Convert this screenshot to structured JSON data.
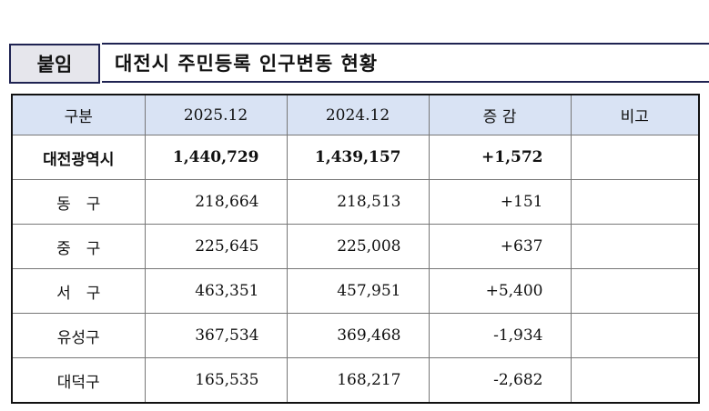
{
  "tag": "붙임",
  "title": "대전시 주민등록 인구변동 현황",
  "headers": [
    "구분",
    "2025.12",
    "2024.12",
    "증 감",
    "비고"
  ],
  "rows": [
    {
      "name": "대전광역시",
      "y2025": "1,440,729",
      "y2024": "1,439,157",
      "change": "+1,572",
      "note": ""
    },
    {
      "name": "동　구",
      "y2025": "218,664",
      "y2024": "218,513",
      "change": "+151",
      "note": ""
    },
    {
      "name": "중　구",
      "y2025": "225,645",
      "y2024": "225,008",
      "change": "+637",
      "note": ""
    },
    {
      "name": "서　구",
      "y2025": "463,351",
      "y2024": "457,951",
      "change": "+5,400",
      "note": ""
    },
    {
      "name": "유성구",
      "y2025": "367,534",
      "y2024": "369,468",
      "change": "-1,934",
      "note": ""
    },
    {
      "name": "대덕구",
      "y2025": "165,535",
      "y2024": "168,217",
      "change": "-2,682",
      "note": ""
    }
  ]
}
